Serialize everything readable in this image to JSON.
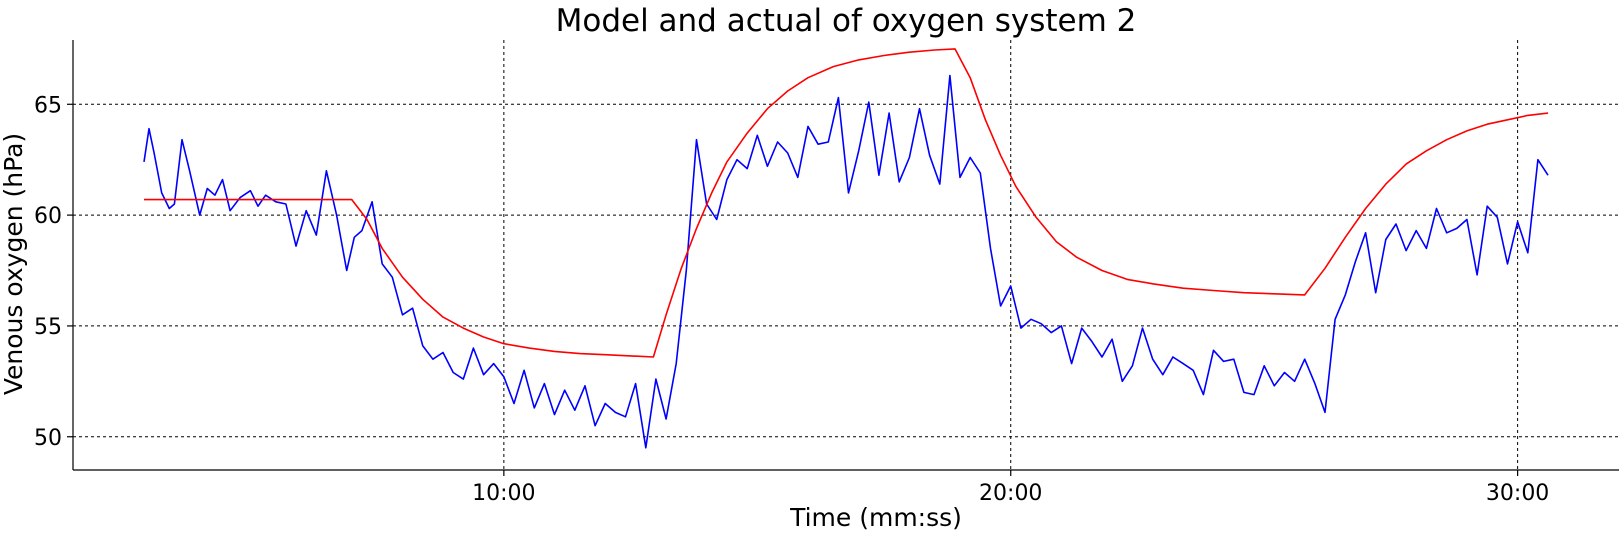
{
  "chart_data": {
    "type": "line",
    "title": "Model and actual of oxygen system 2",
    "xlabel": "Time (mm:ss)",
    "ylabel": "Venous oxygen (hPa)",
    "x_unit": "minutes",
    "xlim": [
      1.5,
      32
    ],
    "ylim": [
      48.5,
      67.9
    ],
    "xticks": [
      {
        "value": 10,
        "label": "10:00"
      },
      {
        "value": 20,
        "label": "20:00"
      },
      {
        "value": 30,
        "label": "30:00"
      }
    ],
    "yticks": [
      {
        "value": 50,
        "label": "50"
      },
      {
        "value": 55,
        "label": "55"
      },
      {
        "value": 60,
        "label": "60"
      },
      {
        "value": 65,
        "label": "65"
      }
    ],
    "grid": true,
    "series": [
      {
        "color": "#0000ff",
        "x": [
          2.9,
          3.0,
          3.1,
          3.25,
          3.4,
          3.5,
          3.65,
          3.8,
          4.0,
          4.15,
          4.3,
          4.45,
          4.6,
          4.8,
          5.0,
          5.15,
          5.3,
          5.5,
          5.7,
          5.9,
          6.1,
          6.3,
          6.5,
          6.7,
          6.9,
          7.05,
          7.2,
          7.4,
          7.6,
          7.8,
          8.0,
          8.2,
          8.4,
          8.6,
          8.8,
          9.0,
          9.2,
          9.4,
          9.6,
          9.8,
          10.0,
          10.2,
          10.4,
          10.6,
          10.8,
          11.0,
          11.2,
          11.4,
          11.6,
          11.8,
          12.0,
          12.2,
          12.4,
          12.6,
          12.8,
          13.0,
          13.2,
          13.4,
          13.6,
          13.8,
          14.0,
          14.2,
          14.4,
          14.6,
          14.8,
          15.0,
          15.2,
          15.4,
          15.6,
          15.8,
          16.0,
          16.2,
          16.4,
          16.6,
          16.8,
          17.0,
          17.2,
          17.4,
          17.6,
          17.8,
          18.0,
          18.2,
          18.4,
          18.6,
          18.8,
          19.0,
          19.2,
          19.4,
          19.6,
          19.8,
          20.0,
          20.2,
          20.4,
          20.6,
          20.8,
          21.0,
          21.2,
          21.4,
          21.6,
          21.8,
          22.0,
          22.2,
          22.4,
          22.6,
          22.8,
          23.0,
          23.2,
          23.4,
          23.6,
          23.8,
          24.0,
          24.2,
          24.4,
          24.6,
          24.8,
          25.0,
          25.2,
          25.4,
          25.6,
          25.8,
          26.0,
          26.2,
          26.4,
          26.6,
          26.8,
          27.0,
          27.2,
          27.4,
          27.6,
          27.8,
          28.0,
          28.2,
          28.4,
          28.6,
          28.8,
          29.0,
          29.2,
          29.4,
          29.6,
          29.8,
          30.0,
          30.2,
          30.4,
          30.6
        ],
        "y": [
          62.4,
          63.9,
          62.8,
          61.0,
          60.3,
          60.5,
          63.4,
          62.0,
          60.0,
          61.2,
          60.9,
          61.6,
          60.2,
          60.8,
          61.1,
          60.4,
          60.9,
          60.6,
          60.5,
          58.6,
          60.2,
          59.1,
          62.0,
          60.0,
          57.5,
          59.0,
          59.3,
          60.6,
          57.8,
          57.2,
          55.5,
          55.8,
          54.1,
          53.5,
          53.8,
          52.9,
          52.6,
          54.0,
          52.8,
          53.3,
          52.7,
          51.5,
          53.0,
          51.3,
          52.4,
          51.0,
          52.1,
          51.2,
          52.3,
          50.5,
          51.5,
          51.1,
          50.9,
          52.4,
          49.5,
          52.6,
          50.8,
          53.3,
          57.5,
          63.4,
          60.5,
          59.8,
          61.6,
          62.5,
          62.1,
          63.6,
          62.2,
          63.3,
          62.8,
          61.7,
          64.0,
          63.2,
          63.3,
          65.3,
          61.0,
          62.9,
          65.1,
          61.8,
          64.6,
          61.5,
          62.6,
          64.8,
          62.7,
          61.4,
          66.3,
          61.7,
          62.6,
          61.9,
          58.5,
          55.9,
          56.8,
          54.9,
          55.3,
          55.1,
          54.7,
          55.0,
          53.3,
          54.9,
          54.3,
          53.6,
          54.4,
          52.5,
          53.2,
          54.9,
          53.5,
          52.8,
          53.6,
          53.3,
          53.0,
          51.9,
          53.9,
          53.4,
          53.5,
          52.0,
          51.9,
          53.2,
          52.3,
          52.9,
          52.5,
          53.5,
          52.4,
          51.1,
          55.3,
          56.4,
          57.9,
          59.2,
          56.5,
          58.9,
          59.6,
          58.4,
          59.3,
          58.5,
          60.3,
          59.2,
          59.4,
          59.8,
          57.3,
          60.4,
          59.9,
          57.8,
          59.7,
          58.3,
          62.5,
          61.8
        ]
      },
      {
        "color": "#ff0000",
        "x": [
          2.9,
          4.0,
          5.0,
          6.0,
          7.0,
          7.3,
          7.6,
          8.0,
          8.4,
          8.8,
          9.2,
          9.6,
          10.0,
          10.5,
          11.0,
          11.5,
          12.0,
          12.5,
          12.95,
          13.2,
          13.5,
          13.8,
          14.1,
          14.4,
          14.8,
          15.2,
          15.6,
          16.0,
          16.5,
          17.0,
          17.5,
          18.0,
          18.5,
          18.9,
          19.2,
          19.5,
          19.8,
          20.1,
          20.5,
          20.9,
          21.3,
          21.8,
          22.3,
          22.8,
          23.4,
          24.0,
          24.6,
          25.2,
          25.8,
          26.2,
          26.6,
          27.0,
          27.4,
          27.8,
          28.2,
          28.6,
          29.0,
          29.4,
          29.8,
          30.2,
          30.6
        ],
        "y": [
          60.7,
          60.7,
          60.7,
          60.7,
          60.7,
          59.8,
          58.5,
          57.2,
          56.2,
          55.4,
          54.9,
          54.5,
          54.2,
          54.0,
          53.85,
          53.75,
          53.7,
          53.65,
          53.6,
          55.5,
          57.6,
          59.4,
          61.0,
          62.4,
          63.7,
          64.8,
          65.6,
          66.2,
          66.7,
          67.0,
          67.2,
          67.35,
          67.45,
          67.5,
          66.2,
          64.3,
          62.7,
          61.3,
          59.9,
          58.8,
          58.1,
          57.5,
          57.1,
          56.9,
          56.7,
          56.6,
          56.5,
          56.45,
          56.4,
          57.6,
          59.0,
          60.3,
          61.4,
          62.3,
          62.9,
          63.4,
          63.8,
          64.1,
          64.3,
          64.5,
          64.6
        ]
      }
    ]
  }
}
